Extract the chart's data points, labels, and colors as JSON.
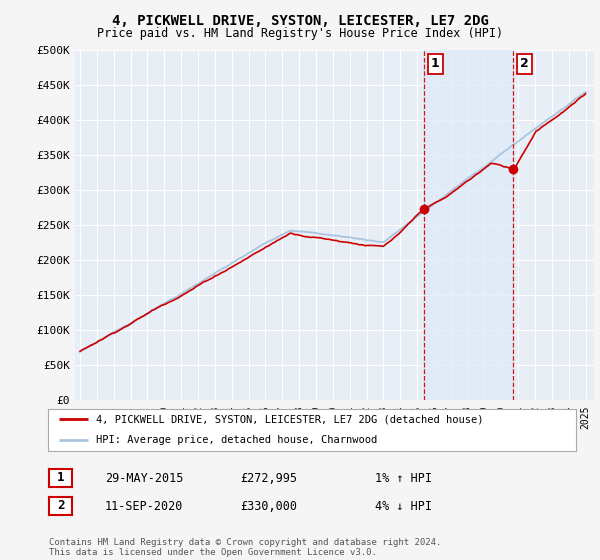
{
  "title": "4, PICKWELL DRIVE, SYSTON, LEICESTER, LE7 2DG",
  "subtitle": "Price paid vs. HM Land Registry's House Price Index (HPI)",
  "ylabel_ticks": [
    "£0",
    "£50K",
    "£100K",
    "£150K",
    "£200K",
    "£250K",
    "£300K",
    "£350K",
    "£400K",
    "£450K",
    "£500K"
  ],
  "ytick_values": [
    0,
    50000,
    100000,
    150000,
    200000,
    250000,
    300000,
    350000,
    400000,
    450000,
    500000
  ],
  "ylim": [
    0,
    500000
  ],
  "xlim_start": 1994.7,
  "xlim_end": 2025.5,
  "hpi_color": "#aac4e0",
  "hpi_fill_color": "#ddeaf8",
  "price_color": "#cc0000",
  "background_color": "#f5f5f5",
  "plot_bg_color": "#e8eef6",
  "grid_color": "#ffffff",
  "sale1_x": 2015.41,
  "sale1_y": 272995,
  "sale2_x": 2020.71,
  "sale2_y": 330000,
  "vline_color": "#cc0000",
  "annotation_label1": "1",
  "annotation_label2": "2",
  "legend_line1": "4, PICKWELL DRIVE, SYSTON, LEICESTER, LE7 2DG (detached house)",
  "legend_line2": "HPI: Average price, detached house, Charnwood",
  "table_row1_num": "1",
  "table_row1_date": "29-MAY-2015",
  "table_row1_price": "£272,995",
  "table_row1_hpi": "1% ↑ HPI",
  "table_row2_num": "2",
  "table_row2_date": "11-SEP-2020",
  "table_row2_price": "£330,000",
  "table_row2_hpi": "4% ↓ HPI",
  "footer": "Contains HM Land Registry data © Crown copyright and database right 2024.\nThis data is licensed under the Open Government Licence v3.0.",
  "xtick_years": [
    1995,
    1996,
    1997,
    1998,
    1999,
    2000,
    2001,
    2002,
    2003,
    2004,
    2005,
    2006,
    2007,
    2008,
    2009,
    2010,
    2011,
    2012,
    2013,
    2014,
    2015,
    2016,
    2017,
    2018,
    2019,
    2020,
    2021,
    2022,
    2023,
    2024,
    2025
  ]
}
